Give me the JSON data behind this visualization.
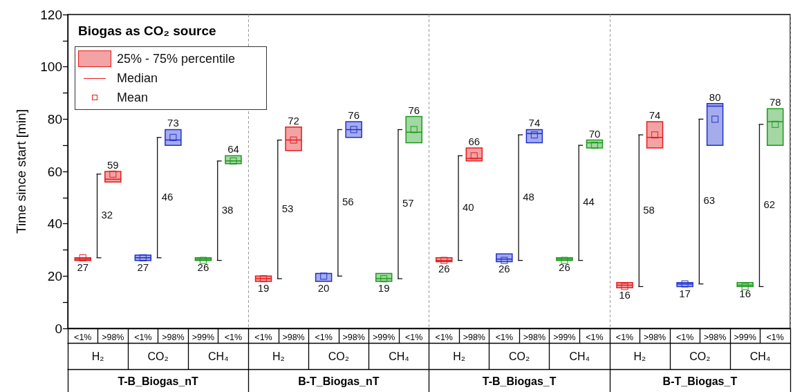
{
  "chart_data": {
    "type": "box",
    "title": "Biogas as CO₂ source",
    "ylabel": "Time since start [min]",
    "categories": [
      "<1%",
      ">98%",
      "<1%",
      ">98%",
      ">99%",
      "<1%",
      "<1%",
      ">98%",
      "<1%",
      ">98%",
      ">99%",
      "<1%",
      "<1%",
      ">98%",
      "<1%",
      ">98%",
      ">99%",
      "<1%",
      "<1%",
      ">98%",
      "<1%",
      ">98%",
      ">99%",
      "<1%"
    ],
    "colors": [
      "#e31a1c",
      "#e31a1c",
      "#1f2fd0",
      "#1f2fd0",
      "#1a9a1a",
      "#1a9a1a",
      "#e31a1c",
      "#e31a1c",
      "#1f2fd0",
      "#1f2fd0",
      "#1a9a1a",
      "#1a9a1a",
      "#e31a1c",
      "#e31a1c",
      "#1f2fd0",
      "#1f2fd0",
      "#1a9a1a",
      "#1a9a1a",
      "#e31a1c",
      "#e31a1c",
      "#1f2fd0",
      "#1f2fd0",
      "#1a9a1a",
      "#1a9a1a"
    ],
    "boxes": [
      {
        "low": 26,
        "q1": 26,
        "median": 26.5,
        "q3": 27,
        "high": 27,
        "mean": 27
      },
      {
        "low": 56,
        "q1": 56,
        "median": 57,
        "q3": 60,
        "high": 60,
        "mean": 59
      },
      {
        "low": 26,
        "q1": 26,
        "median": 27,
        "q3": 28,
        "high": 28,
        "mean": 27
      },
      {
        "low": 70,
        "q1": 70,
        "median": 72,
        "q3": 76,
        "high": 76,
        "mean": 73
      },
      {
        "low": 26,
        "q1": 26,
        "median": 26.5,
        "q3": 27,
        "high": 27,
        "mean": 26
      },
      {
        "low": 63,
        "q1": 63,
        "median": 64,
        "q3": 66,
        "high": 66,
        "mean": 64
      },
      {
        "low": 18,
        "q1": 18,
        "median": 19,
        "q3": 20,
        "high": 20,
        "mean": 19
      },
      {
        "low": 68,
        "q1": 68,
        "median": 72,
        "q3": 77,
        "high": 77,
        "mean": 72
      },
      {
        "low": 18,
        "q1": 18,
        "median": 21,
        "q3": 21,
        "high": 21,
        "mean": 20
      },
      {
        "low": 73,
        "q1": 73,
        "median": 76,
        "q3": 79,
        "high": 79,
        "mean": 76
      },
      {
        "low": 18,
        "q1": 18,
        "median": 19,
        "q3": 21,
        "high": 21,
        "mean": 19
      },
      {
        "low": 71,
        "q1": 71,
        "median": 75,
        "q3": 81,
        "high": 81,
        "mean": 76
      },
      {
        "low": 25.5,
        "q1": 25.5,
        "median": 26,
        "q3": 27,
        "high": 27,
        "mean": 26
      },
      {
        "low": 64,
        "q1": 64,
        "median": 65,
        "q3": 69,
        "high": 69,
        "mean": 66
      },
      {
        "low": 25.5,
        "q1": 25.5,
        "median": 26.5,
        "q3": 28.5,
        "high": 28.5,
        "mean": 26
      },
      {
        "low": 71,
        "q1": 71,
        "median": 74.5,
        "q3": 76,
        "high": 76,
        "mean": 74
      },
      {
        "low": 26,
        "q1": 26,
        "median": 26.5,
        "q3": 27,
        "high": 27,
        "mean": 26
      },
      {
        "low": 69,
        "q1": 69,
        "median": 71,
        "q3": 72,
        "high": 72,
        "mean": 70
      },
      {
        "low": 15.5,
        "q1": 15.5,
        "median": 16.5,
        "q3": 17.5,
        "high": 17.5,
        "mean": 16
      },
      {
        "low": 69,
        "q1": 69,
        "median": 73,
        "q3": 79,
        "high": 79,
        "mean": 74
      },
      {
        "low": 16,
        "q1": 16,
        "median": 17,
        "q3": 17.5,
        "high": 17.5,
        "mean": 17
      },
      {
        "low": 70,
        "q1": 70,
        "median": 85,
        "q3": 86,
        "high": 86,
        "mean": 80
      },
      {
        "low": 16,
        "q1": 16,
        "median": 16.5,
        "q3": 17.5,
        "high": 17.5,
        "mean": 16
      },
      {
        "low": 70,
        "q1": 70,
        "median": 79,
        "q3": 84,
        "high": 84,
        "mean": 78
      }
    ],
    "ylim": [
      0,
      120
    ],
    "yticks": [
      0,
      20,
      40,
      60,
      80,
      100,
      120
    ],
    "annotations": [
      "25% - 75% percentile",
      "Median",
      "Mean",
      "H₂",
      "CO₂",
      "CH₄",
      "H₂",
      "CO₂",
      "CH₄",
      "H₂",
      "CO₂",
      "CH₄",
      "H₂",
      "CO₂",
      "CH₄",
      "T-B_Biogas_nT",
      "B-T_Biogas_nT",
      "T-B_Biogas_T",
      "B-T_Biogas_T",
      "32",
      "46",
      "38",
      "53",
      "56",
      "57",
      "40",
      "48",
      "44",
      "58",
      "63",
      "62",
      "27",
      "59",
      "27",
      "73",
      "26",
      "64",
      "19",
      "72",
      "20",
      "76",
      "19",
      "76",
      "26",
      "66",
      "26",
      "74",
      "26",
      "70",
      "16",
      "74",
      "17",
      "80",
      "16",
      "78"
    ]
  }
}
